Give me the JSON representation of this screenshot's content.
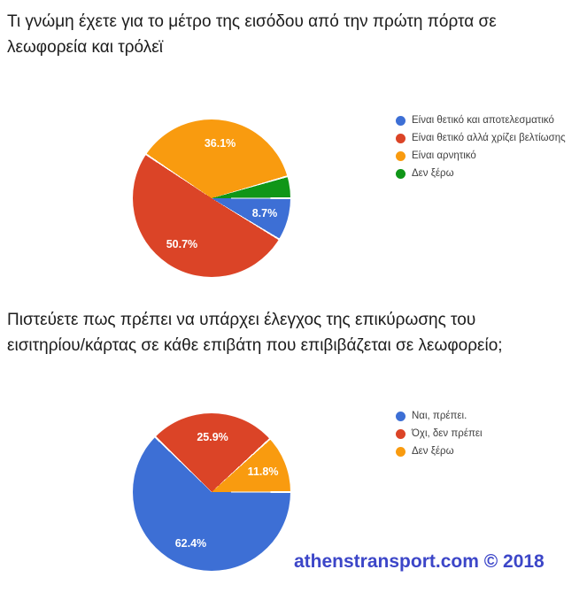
{
  "chart_data": [
    {
      "type": "pie",
      "title": "Τι γνώμη έχετε για το μέτρο της εισόδου από την πρώτη πόρτα σε λεωφορεία και τρόλεϊ",
      "title_display": "Τι γνώμη έχετε για το μέτρο της εισόδου από την πρώτη πόρτα σε\nλεωφορεία και τρόλεϊ",
      "legend_position": "right",
      "start_angle": "3-oclock-clockwise",
      "slices": [
        {
          "label": "Είναι θετικό και αποτελεσματικό",
          "value": 8.7,
          "display": "8.7%",
          "color": "#3D6FD5"
        },
        {
          "label": "Είναι θετικό αλλά χρίζει βελτίωσης",
          "value": 50.7,
          "display": "50.7%",
          "color": "#DB4427"
        },
        {
          "label": "Είναι αρνητικό",
          "value": 36.1,
          "display": "36.1%",
          "color": "#F99B0F"
        },
        {
          "label": "Δεν ξέρω",
          "value": 4.5,
          "display": "",
          "color": "#109618"
        }
      ]
    },
    {
      "type": "pie",
      "title": "Πιστεύετε πως πρέπει να υπάρχει έλεγχος της επικύρωσης του εισιτηρίου/κάρτας σε κάθε επιβάτη που επιβιβάζεται σε λεωφορείο;",
      "title_display": "Πιστεύετε πως πρέπει να υπάρχει έλεγχος της επικύρωσης του\nεισιτηρίου/κάρτας σε κάθε επιβάτη που επιβιβάζεται σε λεωφορείο;",
      "legend_position": "right",
      "start_angle": "3-oclock-clockwise",
      "slices": [
        {
          "label": "Ναι, πρέπει.",
          "value": 62.4,
          "display": "62.4%",
          "color": "#3D6FD5"
        },
        {
          "label": "Όχι, δεν πρέπει",
          "value": 25.9,
          "display": "25.9%",
          "color": "#DB4427"
        },
        {
          "label": "Δεν ξέρω",
          "value": 11.8,
          "display": "11.8%",
          "color": "#F99B0F"
        }
      ]
    }
  ],
  "watermark": {
    "text": "athenstransport.com © 2018",
    "color": "#3C46C8"
  }
}
